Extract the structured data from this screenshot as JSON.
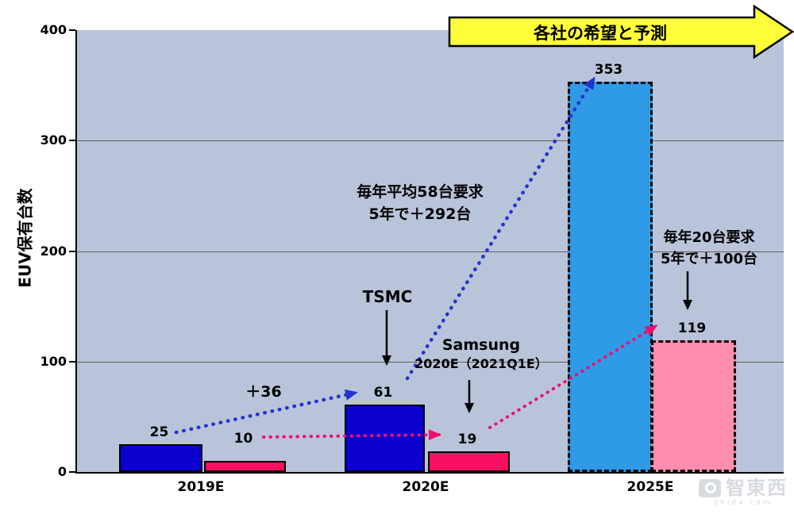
{
  "banner": {
    "label": "各社の希望と予測"
  },
  "watermark": {
    "brand": "智東西",
    "domain": "zhidx.com"
  },
  "chart_data": {
    "type": "bar",
    "title": "",
    "ylabel": "EUV保有台数",
    "xlabel": "",
    "ylim": [
      0,
      400
    ],
    "yticks": [
      0,
      100,
      200,
      300,
      400
    ],
    "grid": true,
    "legend_position": "none",
    "categories": [
      "2019E",
      "2020E",
      "2025E"
    ],
    "series": [
      {
        "name": "TSMC",
        "values": [
          25,
          61,
          353
        ],
        "style_2025": "dashed-forecast"
      },
      {
        "name": "Samsung",
        "values": [
          10,
          19,
          119
        ],
        "style_2025": "dashed-forecast"
      }
    ],
    "annotations": {
      "plus36": "＋36",
      "tsmc_growth_line1": "毎年平均58台要求",
      "tsmc_growth_line2": "5年で＋292台",
      "samsung_growth_line1": "毎年20台要求",
      "samsung_growth_line2": "5年で＋100台",
      "tsmc_label": "TSMC",
      "samsung_label_line1": "Samsung",
      "samsung_label_line2": "2020E（2021Q1E）"
    },
    "colors": {
      "plot_bg": "#b9c4da",
      "tsmc": "#0b00cf",
      "samsung": "#fb0f63",
      "tsmc_forecast": "#2f9ae6",
      "samsung_forecast": "#ff8dad",
      "arrow_blue": "#2633cc",
      "arrow_pink": "#ee1070",
      "banner_fill": "#ffff3a",
      "axis": "#000000"
    }
  }
}
